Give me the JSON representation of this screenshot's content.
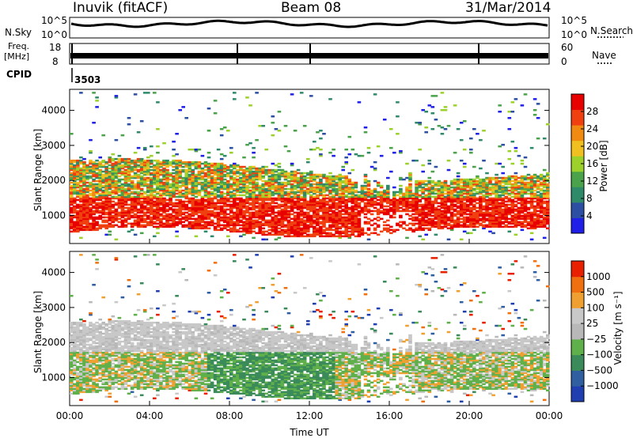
{
  "header": {
    "station": "Inuvik (fitACF)",
    "beam": "Beam 08",
    "date": "31/Mar/2014"
  },
  "side_labels": {
    "nsky": "N.Sky",
    "nsearch": "N.Search",
    "freq_line1": "Freq.",
    "freq_line2": "[MHz]",
    "nave": "Nave",
    "cpid": "CPID",
    "cpid_value": "3503"
  },
  "top_panels": {
    "noise": {
      "left_ticks": [
        "10^5",
        "10^0"
      ],
      "right_ticks": [
        "10^5",
        "10^0"
      ]
    },
    "freq": {
      "left_ticks": [
        "18",
        "8"
      ],
      "right_ticks": [
        "60",
        "0"
      ]
    }
  },
  "colors": {
    "power_scale": [
      "#1f1fe8",
      "#2d4fa3",
      "#2f8a6a",
      "#4aa34a",
      "#9bd12a",
      "#f0c020",
      "#f08a10",
      "#f04010",
      "#e80000"
    ],
    "velocity_scale": [
      "#1f3fb0",
      "#2f5fa0",
      "#3a8a5a",
      "#5fb04a",
      "#b8b8b8",
      "#c8c8c8",
      "#f0a030",
      "#f07010",
      "#e82000"
    ]
  },
  "chart_data": [
    {
      "type": "heatmap",
      "title": "",
      "xlabel": "",
      "ylabel": "Slant Range [km]",
      "ylim": [
        200,
        4600
      ],
      "xlim": [
        "00:00",
        "24:00"
      ],
      "yticks": [
        1000,
        2000,
        3000,
        4000
      ],
      "colorbar": {
        "label": "Power [dB]",
        "ticks": [
          4,
          8,
          12,
          16,
          20,
          24,
          28
        ],
        "range": [
          0,
          30
        ]
      },
      "description_of_echo_band": "dense echoes roughly 500-2500 km slant range through most of the day; strongest power (>28 dB) near 500-1500 km"
    },
    {
      "type": "heatmap",
      "title": "",
      "xlabel": "Time UT",
      "ylabel": "Slant Range [km]",
      "ylim": [
        200,
        4600
      ],
      "xlim": [
        "00:00",
        "24:00"
      ],
      "yticks": [
        1000,
        2000,
        3000,
        4000
      ],
      "xticks": [
        "00:00",
        "04:00",
        "08:00",
        "12:00",
        "16:00",
        "20:00",
        "00:00"
      ],
      "colorbar": {
        "label": "Velocity [m s⁻¹]",
        "ticks": [
          "1000",
          "500",
          "100",
          "25",
          "−25",
          "−100",
          "−500",
          "−1000"
        ]
      }
    }
  ]
}
